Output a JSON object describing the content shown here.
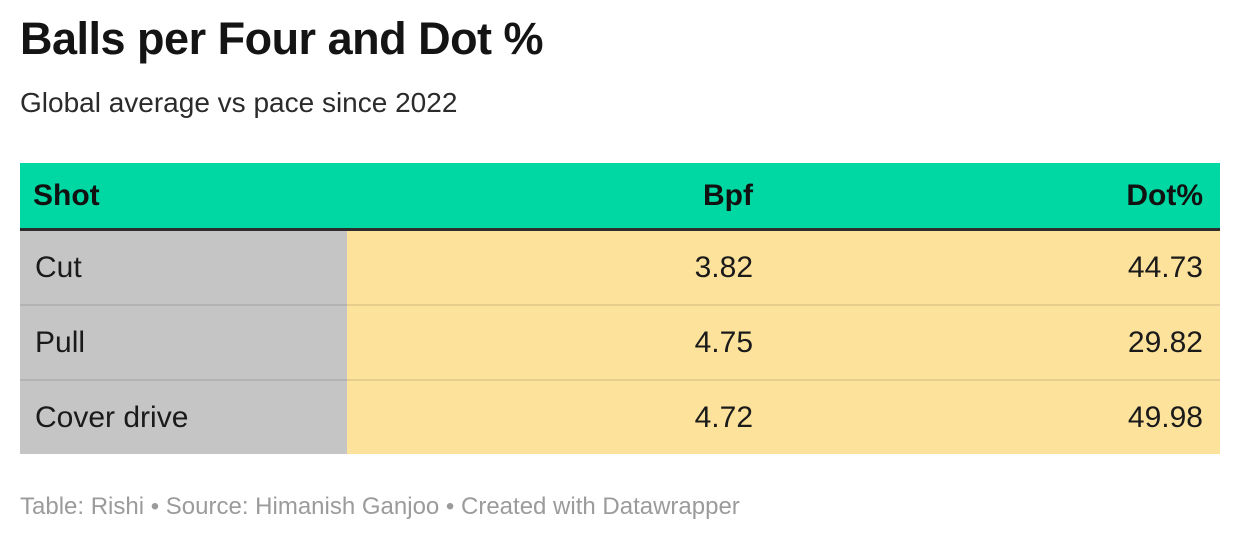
{
  "header": {
    "title": "Balls per Four and Dot %",
    "subtitle": "Global average vs pace since 2022"
  },
  "table": {
    "columns": [
      {
        "label": "Shot"
      },
      {
        "label": "Bpf"
      },
      {
        "label": "Dot%"
      }
    ],
    "rows": [
      {
        "shot": "Cut",
        "bpf": "3.82",
        "dot": "44.73"
      },
      {
        "shot": "Pull",
        "bpf": "4.75",
        "dot": "29.82"
      },
      {
        "shot": "Cover drive",
        "bpf": "4.72",
        "dot": "49.98"
      }
    ]
  },
  "footer": {
    "attribution": "Table: Rishi • Source: Himanish Ganjoo • Created with Datawrapper"
  },
  "colors": {
    "header_bg": "#00d8a3",
    "shot_column_bg": "#c5c5c6",
    "value_column_bg": "#fde29b",
    "header_underline": "#2d2d2d",
    "row_separator": "rgba(0,0,0,0.09)",
    "footer_text": "#9b9b9b"
  },
  "chart_data": {
    "type": "table",
    "title": "Balls per Four and Dot %",
    "subtitle": "Global average vs pace since 2022",
    "columns": [
      "Shot",
      "Bpf",
      "Dot%"
    ],
    "rows": [
      [
        "Cut",
        3.82,
        44.73
      ],
      [
        "Pull",
        4.75,
        29.82
      ],
      [
        "Cover drive",
        4.72,
        49.98
      ]
    ],
    "notes": "Table: Rishi • Source: Himanish Ganjoo • Created with Datawrapper"
  }
}
